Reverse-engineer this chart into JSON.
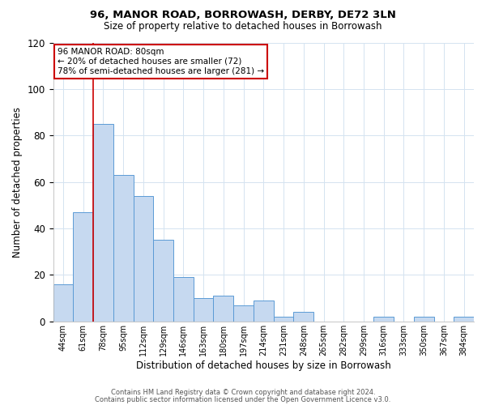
{
  "title": "96, MANOR ROAD, BORROWASH, DERBY, DE72 3LN",
  "subtitle": "Size of property relative to detached houses in Borrowash",
  "xlabel": "Distribution of detached houses by size in Borrowash",
  "ylabel": "Number of detached properties",
  "bar_labels": [
    "44sqm",
    "61sqm",
    "78sqm",
    "95sqm",
    "112sqm",
    "129sqm",
    "146sqm",
    "163sqm",
    "180sqm",
    "197sqm",
    "214sqm",
    "231sqm",
    "248sqm",
    "265sqm",
    "282sqm",
    "299sqm",
    "316sqm",
    "333sqm",
    "350sqm",
    "367sqm",
    "384sqm"
  ],
  "bar_values": [
    16,
    47,
    85,
    63,
    54,
    35,
    19,
    10,
    11,
    7,
    9,
    2,
    4,
    0,
    0,
    0,
    2,
    0,
    2,
    0,
    2
  ],
  "bar_color": "#c6d9f0",
  "bar_edge_color": "#5b9bd5",
  "vline_index": 2,
  "vline_color": "#cc0000",
  "ylim": [
    0,
    120
  ],
  "yticks": [
    0,
    20,
    40,
    60,
    80,
    100,
    120
  ],
  "annotation_title": "96 MANOR ROAD: 80sqm",
  "annotation_line1": "← 20% of detached houses are smaller (72)",
  "annotation_line2": "78% of semi-detached houses are larger (281) →",
  "annotation_box_color": "#ffffff",
  "annotation_box_edge": "#cc0000",
  "footer_line1": "Contains HM Land Registry data © Crown copyright and database right 2024.",
  "footer_line2": "Contains public sector information licensed under the Open Government Licence v3.0.",
  "background_color": "#ffffff",
  "grid_color": "#d4e3f0"
}
